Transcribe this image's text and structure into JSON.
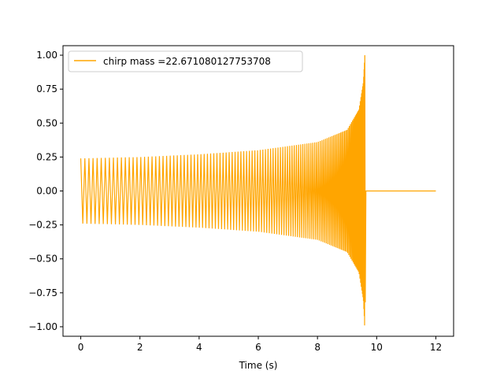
{
  "chart_data": {
    "type": "line",
    "title": "",
    "xlabel": "Time (s)",
    "ylabel": "",
    "xlim": [
      -0.6,
      12.6
    ],
    "ylim": [
      -1.07,
      1.07
    ],
    "x_ticks": [
      0,
      2,
      4,
      6,
      8,
      10,
      12
    ],
    "y_ticks": [
      -1.0,
      -0.75,
      -0.5,
      -0.25,
      0.0,
      0.25,
      0.5,
      0.75,
      1.0
    ],
    "x_tick_labels": [
      "0",
      "2",
      "4",
      "6",
      "8",
      "10",
      "12"
    ],
    "y_tick_labels": [
      "−1.00",
      "−0.75",
      "−0.50",
      "−0.25",
      "0.00",
      "0.25",
      "0.50",
      "0.75",
      "1.00"
    ],
    "grid": false,
    "legend_position": "top-left",
    "series": [
      {
        "name": "chirp mass =22.671080127753708",
        "color": "#ffa500",
        "merger_time": 9.6,
        "end_time": 12.0,
        "envelope": {
          "t": [
            0,
            2,
            4,
            6,
            8,
            9,
            9.4,
            9.55,
            9.6
          ],
          "amplitude": [
            0.24,
            0.25,
            0.27,
            0.3,
            0.36,
            0.45,
            0.6,
            0.8,
            1.0
          ]
        },
        "min_value": -0.99,
        "max_value": 1.0
      }
    ]
  }
}
